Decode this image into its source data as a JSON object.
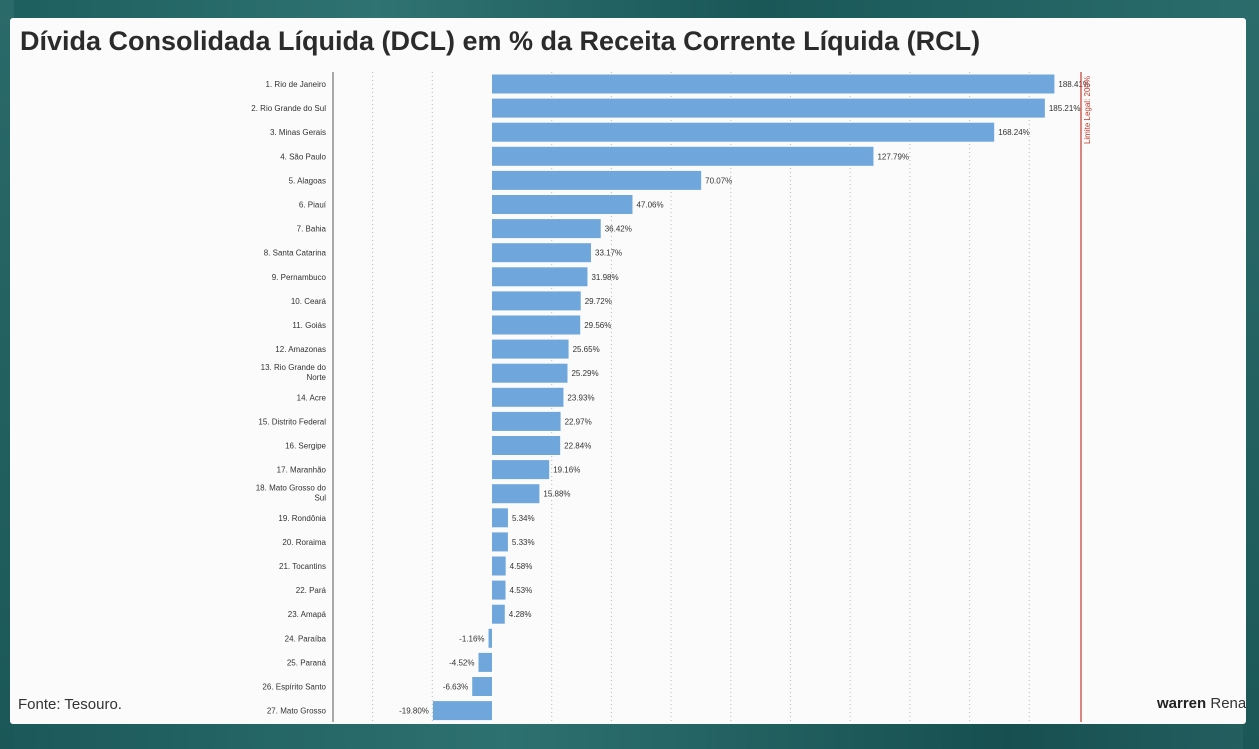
{
  "title": "Dívida Consolidada Líquida (DCL) em % da Receita Corrente Líquida (RCL)",
  "source": "Fonte: Tesouro.",
  "brand": {
    "bold": "warren",
    "rest": "Rena"
  },
  "colors": {
    "bar": "#6fa6dc",
    "limit_line": "#c0392b",
    "text": "#333333",
    "grid": "#bbbbbb"
  },
  "chart_data": {
    "type": "bar",
    "orientation": "horizontal",
    "title": "Dívida Consolidada Líquida (DCL) em % da Receita Corrente Líquida (RCL)",
    "categories": [
      "1. Rio de Janeiro",
      "2. Rio Grande do Sul",
      "3. Minas Gerais",
      "4. São Paulo",
      "5. Alagoas",
      "6. Piauí",
      "7. Bahia",
      "8. Santa Catarina",
      "9. Pernambuco",
      "10. Ceará",
      "11. Goiás",
      "12. Amazonas",
      "13. Rio Grande do Norte",
      "14. Acre",
      "15. Distrito Federal",
      "16. Sergipe",
      "17. Maranhão",
      "18. Mato Grosso do Sul",
      "19. Rondônia",
      "20. Roraima",
      "21. Tocantins",
      "22. Pará",
      "23. Amapá",
      "24. Paraíba",
      "25. Paraná",
      "26. Espírito Santo",
      "27. Mato Grosso"
    ],
    "values": [
      188.41,
      185.21,
      168.24,
      127.79,
      70.07,
      47.06,
      36.42,
      33.17,
      31.98,
      29.72,
      29.56,
      25.65,
      25.29,
      23.93,
      22.97,
      22.84,
      19.16,
      15.88,
      5.34,
      5.33,
      4.58,
      4.53,
      4.28,
      -1.16,
      -4.52,
      -6.63,
      -19.8
    ],
    "value_labels": [
      "188.41%",
      "185.21%",
      "168.24%",
      "127.79%",
      "70.07%",
      "47.06%",
      "36.42%",
      "33.17%",
      "31.98%",
      "29.72%",
      "29.56%",
      "25.65%",
      "25.29%",
      "23.93%",
      "22.97%",
      "22.84%",
      "19.16%",
      "15.88%",
      "5.34%",
      "5.33%",
      "4.58%",
      "4.53%",
      "4.28%",
      "-1.16%",
      "-4.52%",
      "-6.63%",
      "-19.80%"
    ],
    "xlim": [
      -40,
      200
    ],
    "grid_lines": [
      -40,
      -20,
      20,
      40,
      60,
      80,
      100,
      120,
      140,
      160,
      180
    ],
    "grid": true,
    "reference_line": {
      "value": 200,
      "label": "Limite Legal: 200%"
    }
  }
}
